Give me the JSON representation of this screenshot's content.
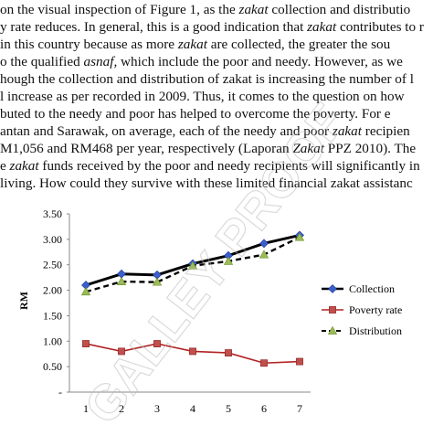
{
  "paragraph": {
    "lines": [
      [
        {
          "t": "on the visual inspection of Figure 1, as the "
        },
        {
          "t": "zakat",
          "i": true
        },
        {
          "t": " collection and distributio"
        }
      ],
      [
        {
          "t": "y rate reduces. In general, this is a good indication that "
        },
        {
          "t": "zakat",
          "i": true
        },
        {
          "t": " contributes to r"
        }
      ],
      [
        {
          "t": " in this country because as more "
        },
        {
          "t": "zakat",
          "i": true
        },
        {
          "t": " are collected, the greater the sou"
        }
      ],
      [
        {
          "t": "o the qualified "
        },
        {
          "t": "asnaf,",
          "i": true
        },
        {
          "t": " which include the poor and needy. However, as we"
        }
      ],
      [
        {
          "t": "hough the collection and distribution of zakat is increasing the number of l"
        }
      ],
      [
        {
          "t": "l increase as per recorded in 2009. Thus, it comes to the question on how"
        }
      ],
      [
        {
          "t": "buted to the needy and poor has helped to overcome the poverty. For e"
        }
      ],
      [
        {
          "t": "antan and Sarawak, on average, each of the needy and poor "
        },
        {
          "t": "zakat",
          "i": true
        },
        {
          "t": " recipien"
        }
      ],
      [
        {
          "t": "M1,056 and RM468 per year, respectively (Laporan "
        },
        {
          "t": "Zakat",
          "i": true
        },
        {
          "t": " PPZ 2010). The"
        }
      ],
      [
        {
          "t": "e "
        },
        {
          "t": "zakat",
          "i": true
        },
        {
          "t": " funds received by the poor and needy recipients will significantly in"
        }
      ],
      [
        {
          "t": " living. How could they survive with these limited financial zakat assistanc"
        }
      ]
    ]
  },
  "chart_data": {
    "type": "line",
    "x": [
      1,
      2,
      3,
      4,
      5,
      6,
      7
    ],
    "xlabel": "",
    "ylabel": "RM",
    "ylim": [
      0,
      3.5
    ],
    "yticks": [
      "3.50",
      "3.00",
      "2.50",
      "2.00",
      "1.50",
      "1.00",
      "0.50",
      "-"
    ],
    "grid": false,
    "legend_position": "right",
    "series": [
      {
        "name": "Collection",
        "values": [
          2.1,
          2.32,
          2.3,
          2.52,
          2.68,
          2.92,
          3.08
        ],
        "color": "#000000",
        "marker": "diamond",
        "marker_color": "#3a5fcd",
        "dash": "solid"
      },
      {
        "name": "Poverty rate",
        "values": [
          0.95,
          0.8,
          0.95,
          0.8,
          0.77,
          0.57,
          0.6
        ],
        "color": "#b22222",
        "marker": "square",
        "marker_color": "#c0504d",
        "dash": "solid"
      },
      {
        "name": "Distribution",
        "values": [
          1.97,
          2.17,
          2.16,
          2.48,
          2.57,
          2.7,
          3.04
        ],
        "color": "#000000",
        "marker": "triangle",
        "marker_color": "#9bbb59",
        "dash": "dashed"
      }
    ]
  },
  "watermark": {
    "text": "GALLEY PROOF",
    "color": "#bdbdbd"
  }
}
